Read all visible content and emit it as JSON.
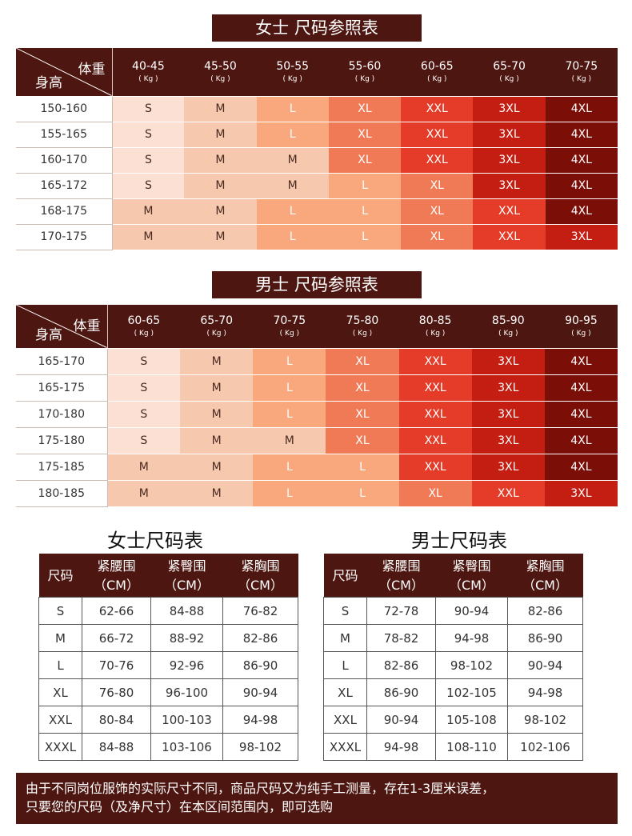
{
  "women_chart": {
    "title": "女士 尺码参照表",
    "corner_weight": "体重",
    "corner_height": "身高",
    "weights": [
      "40-45",
      "45-50",
      "50-55",
      "55-60",
      "60-65",
      "65-70",
      "70-75"
    ],
    "kg": "( Kg )",
    "rows": [
      {
        "height": "150-160",
        "sizes": [
          "S",
          "M",
          "L",
          "XL",
          "XXL",
          "3XL",
          "4XL"
        ]
      },
      {
        "height": "155-165",
        "sizes": [
          "S",
          "M",
          "L",
          "XL",
          "XXL",
          "3XL",
          "4XL"
        ]
      },
      {
        "height": "160-170",
        "sizes": [
          "S",
          "M",
          "M",
          "XL",
          "XXL",
          "3XL",
          "4XL"
        ]
      },
      {
        "height": "165-172",
        "sizes": [
          "S",
          "M",
          "M",
          "L",
          "XL",
          "3XL",
          "4XL"
        ]
      },
      {
        "height": "168-175",
        "sizes": [
          "M",
          "M",
          "L",
          "L",
          "XL",
          "XXL",
          "4XL"
        ]
      },
      {
        "height": "170-175",
        "sizes": [
          "M",
          "M",
          "L",
          "L",
          "XL",
          "XXL",
          "3XL"
        ]
      }
    ]
  },
  "men_chart": {
    "title": "男士 尺码参照表",
    "corner_weight": "体重",
    "corner_height": "身高",
    "weights": [
      "60-65",
      "65-70",
      "70-75",
      "75-80",
      "80-85",
      "85-90",
      "90-95"
    ],
    "kg": "( Kg )",
    "rows": [
      {
        "height": "165-170",
        "sizes": [
          "S",
          "M",
          "L",
          "XL",
          "XXL",
          "3XL",
          "4XL"
        ]
      },
      {
        "height": "165-175",
        "sizes": [
          "S",
          "M",
          "L",
          "XL",
          "XXL",
          "3XL",
          "4XL"
        ]
      },
      {
        "height": "170-180",
        "sizes": [
          "S",
          "M",
          "L",
          "XL",
          "XXL",
          "3XL",
          "4XL"
        ]
      },
      {
        "height": "175-180",
        "sizes": [
          "S",
          "M",
          "M",
          "XL",
          "XXL",
          "3XL",
          "4XL"
        ]
      },
      {
        "height": "175-185",
        "sizes": [
          "M",
          "M",
          "L",
          "L",
          "XXL",
          "3XL",
          "4XL"
        ]
      },
      {
        "height": "180-185",
        "sizes": [
          "M",
          "M",
          "L",
          "L",
          "XL",
          "XXL",
          "3XL"
        ]
      }
    ]
  },
  "women_measure": {
    "title": "女士尺码表",
    "headers": [
      {
        "name": "尺码",
        "unit": ""
      },
      {
        "name": "紧腰围",
        "unit": "（CM）"
      },
      {
        "name": "紧臀围",
        "unit": "（CM）"
      },
      {
        "name": "紧胸围",
        "unit": "（CM）"
      }
    ],
    "rows": [
      [
        "S",
        "62-66",
        "84-88",
        "76-82"
      ],
      [
        "M",
        "66-72",
        "88-92",
        "82-86"
      ],
      [
        "L",
        "70-76",
        "92-96",
        "86-90"
      ],
      [
        "XL",
        "76-80",
        "96-100",
        "90-94"
      ],
      [
        "XXL",
        "80-84",
        "100-103",
        "94-98"
      ],
      [
        "XXXL",
        "84-88",
        "103-106",
        "98-102"
      ]
    ]
  },
  "men_measure": {
    "title": "男士尺码表",
    "headers": [
      {
        "name": "尺码",
        "unit": ""
      },
      {
        "name": "紧腰围",
        "unit": "（CM）"
      },
      {
        "name": "紧臀围",
        "unit": "（CM）"
      },
      {
        "name": "紧胸围",
        "unit": "（CM）"
      }
    ],
    "rows": [
      [
        "S",
        "72-78",
        "90-94",
        "82-86"
      ],
      [
        "M",
        "78-82",
        "94-98",
        "86-90"
      ],
      [
        "L",
        "82-86",
        "98-102",
        "90-94"
      ],
      [
        "XL",
        "86-90",
        "102-105",
        "94-98"
      ],
      [
        "XXL",
        "90-94",
        "105-108",
        "98-102"
      ],
      [
        "XXXL",
        "94-98",
        "108-110",
        "102-106"
      ]
    ]
  },
  "notice": {
    "line1": "由于不同岗位服饰的实际尺寸不同，商品尺码又为纯手工测量，存在1-3厘米误差，",
    "line2": "只要您的尺码（及净尺寸）在本区间范围内，即可选购"
  },
  "colors": {
    "S": "#fbe0d3",
    "M": "#f6c8ad",
    "L": "#f8a87c",
    "XL": "#f07a55",
    "XXL": "#e43c28",
    "3XL": "#c41e12",
    "4XL": "#7c0e08",
    "header": "#4e1610"
  }
}
